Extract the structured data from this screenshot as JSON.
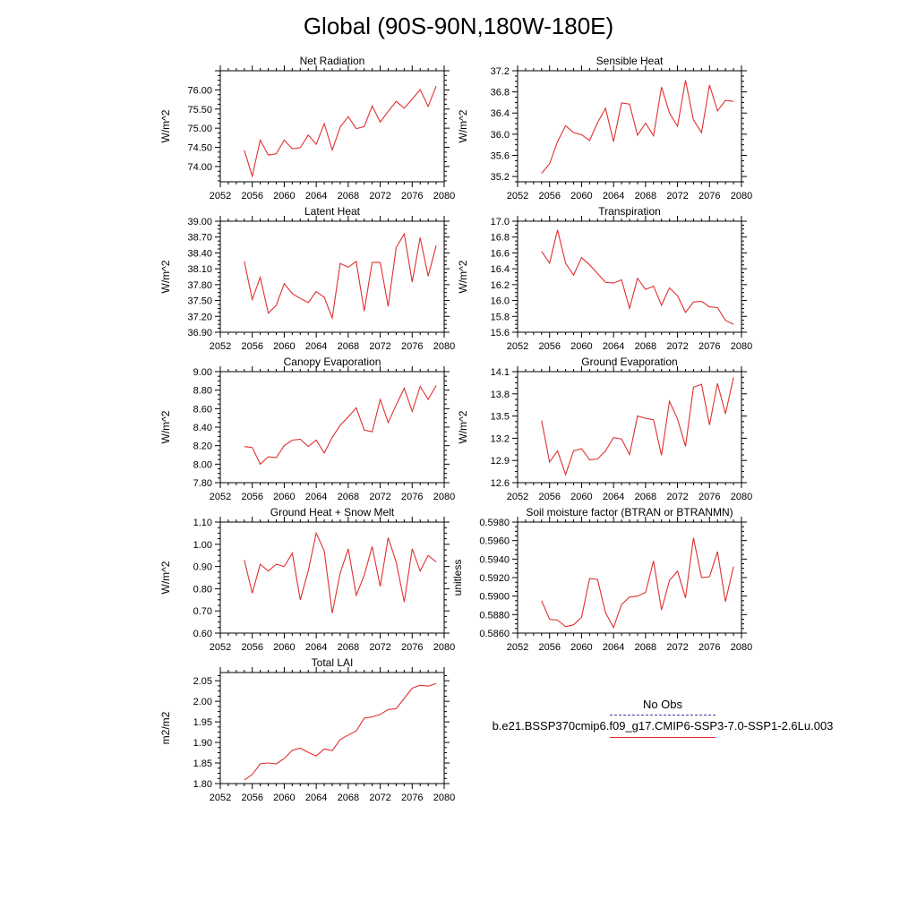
{
  "page_title": "Global (90S-90N,180W-180E)",
  "legend": {
    "title": "No Obs",
    "entries": [
      {
        "label": "",
        "style": "dashed",
        "color": "#3b3b9a"
      },
      {
        "label": "b.e21.BSSP370cmip6.f09_g17.CMIP6-SSP3-7.0-SSP1-2.6Lu.003",
        "style": "solid",
        "color": "#e03030"
      }
    ]
  },
  "chart_data": [
    {
      "type": "line",
      "title": "Net Radiation",
      "ylabel": "W/m^2",
      "xlim": [
        2052,
        2080
      ],
      "ylim": [
        73.6,
        76.5
      ],
      "xticks": [
        2052,
        2056,
        2060,
        2064,
        2068,
        2072,
        2076,
        2080
      ],
      "xtick_labels": [
        "2052",
        "2056",
        "2060",
        "2064",
        "2068",
        "2072",
        "2076",
        "2080"
      ],
      "yticks": [
        74.0,
        74.5,
        75.0,
        75.5,
        76.0
      ],
      "ytick_labels": [
        "74.00",
        "74.50",
        "75.00",
        "75.50",
        "76.00"
      ],
      "series": [
        {
          "color": "#e03030",
          "x": [
            2055,
            2056,
            2057,
            2058,
            2059,
            2060,
            2061,
            2062,
            2063,
            2064,
            2065,
            2066,
            2067,
            2068,
            2069,
            2070,
            2071,
            2072,
            2073,
            2074,
            2075,
            2076,
            2077,
            2078,
            2079
          ],
          "y": [
            74.42,
            73.75,
            74.69,
            74.3,
            74.33,
            74.69,
            74.46,
            74.49,
            74.82,
            74.58,
            75.12,
            74.43,
            75.03,
            75.3,
            74.99,
            75.04,
            75.58,
            75.16,
            75.44,
            75.7,
            75.52,
            75.76,
            76.01,
            75.57,
            76.1
          ]
        }
      ]
    },
    {
      "type": "line",
      "title": "Sensible Heat",
      "ylabel": "W/m^2",
      "xlim": [
        2052,
        2080
      ],
      "ylim": [
        35.1,
        37.2
      ],
      "xticks": [
        2052,
        2056,
        2060,
        2064,
        2068,
        2072,
        2076,
        2080
      ],
      "xtick_labels": [
        "2052",
        "2056",
        "2060",
        "2064",
        "2068",
        "2072",
        "2076",
        "2080"
      ],
      "yticks": [
        35.2,
        35.6,
        36.0,
        36.4,
        36.8,
        37.2
      ],
      "ytick_labels": [
        "35.2",
        "35.6",
        "36.0",
        "36.4",
        "36.8",
        "37.2"
      ],
      "series": [
        {
          "color": "#e03030",
          "x": [
            2055,
            2056,
            2057,
            2058,
            2059,
            2060,
            2061,
            2062,
            2063,
            2064,
            2065,
            2066,
            2067,
            2068,
            2069,
            2070,
            2071,
            2072,
            2073,
            2074,
            2075,
            2076,
            2077,
            2078,
            2079
          ],
          "y": [
            35.26,
            35.44,
            35.86,
            36.16,
            36.03,
            35.99,
            35.88,
            36.22,
            36.49,
            35.86,
            36.59,
            36.57,
            35.98,
            36.21,
            35.97,
            36.89,
            36.4,
            36.15,
            37.02,
            36.27,
            36.03,
            36.93,
            36.44,
            36.64,
            36.62
          ]
        }
      ]
    },
    {
      "type": "line",
      "title": "Latent Heat",
      "ylabel": "W/m^2",
      "xlim": [
        2052,
        2080
      ],
      "ylim": [
        36.9,
        39.0
      ],
      "xticks": [
        2052,
        2056,
        2060,
        2064,
        2068,
        2072,
        2076,
        2080
      ],
      "xtick_labels": [
        "2052",
        "2056",
        "2060",
        "2064",
        "2068",
        "2072",
        "2076",
        "2080"
      ],
      "yticks": [
        36.9,
        37.2,
        37.5,
        37.8,
        38.1,
        38.4,
        38.7,
        39.0
      ],
      "ytick_labels": [
        "36.90",
        "37.20",
        "37.50",
        "37.80",
        "38.10",
        "38.40",
        "38.70",
        "39.00"
      ],
      "series": [
        {
          "color": "#e03030",
          "x": [
            2055,
            2056,
            2057,
            2058,
            2059,
            2060,
            2061,
            2062,
            2063,
            2064,
            2065,
            2066,
            2067,
            2068,
            2069,
            2070,
            2071,
            2072,
            2073,
            2074,
            2075,
            2076,
            2077,
            2078,
            2079
          ],
          "y": [
            38.24,
            37.52,
            37.94,
            37.26,
            37.41,
            37.82,
            37.63,
            37.54,
            37.46,
            37.67,
            37.56,
            37.17,
            38.2,
            38.13,
            38.24,
            37.3,
            38.22,
            38.22,
            37.39,
            38.5,
            38.76,
            37.85,
            38.69,
            37.96,
            38.54
          ]
        }
      ]
    },
    {
      "type": "line",
      "title": "Transpiration",
      "ylabel": "W/m^2",
      "xlim": [
        2052,
        2080
      ],
      "ylim": [
        15.6,
        17.0
      ],
      "xticks": [
        2052,
        2056,
        2060,
        2064,
        2068,
        2072,
        2076,
        2080
      ],
      "xtick_labels": [
        "2052",
        "2056",
        "2060",
        "2064",
        "2068",
        "2072",
        "2076",
        "2080"
      ],
      "yticks": [
        15.6,
        15.8,
        16.0,
        16.2,
        16.4,
        16.6,
        16.8,
        17.0
      ],
      "ytick_labels": [
        "15.6",
        "15.8",
        "16.0",
        "16.2",
        "16.4",
        "16.6",
        "16.8",
        "17.0"
      ],
      "series": [
        {
          "color": "#e03030",
          "x": [
            2055,
            2056,
            2057,
            2058,
            2059,
            2060,
            2061,
            2062,
            2063,
            2064,
            2065,
            2066,
            2067,
            2068,
            2069,
            2070,
            2071,
            2072,
            2073,
            2074,
            2075,
            2076,
            2077,
            2078,
            2079
          ],
          "y": [
            16.62,
            16.47,
            16.89,
            16.47,
            16.32,
            16.54,
            16.45,
            16.34,
            16.23,
            16.22,
            16.26,
            15.9,
            16.28,
            16.14,
            16.18,
            15.94,
            16.16,
            16.06,
            15.85,
            15.98,
            15.99,
            15.92,
            15.91,
            15.75,
            15.7
          ]
        }
      ]
    },
    {
      "type": "line",
      "title": "Canopy Evaporation",
      "ylabel": "W/m^2",
      "xlim": [
        2052,
        2080
      ],
      "ylim": [
        7.8,
        9.0
      ],
      "xticks": [
        2052,
        2056,
        2060,
        2064,
        2068,
        2072,
        2076,
        2080
      ],
      "xtick_labels": [
        "2052",
        "2056",
        "2060",
        "2064",
        "2068",
        "2072",
        "2076",
        "2080"
      ],
      "yticks": [
        7.8,
        8.0,
        8.2,
        8.4,
        8.6,
        8.8,
        9.0
      ],
      "ytick_labels": [
        "7.80",
        "8.00",
        "8.20",
        "8.40",
        "8.60",
        "8.80",
        "9.00"
      ],
      "series": [
        {
          "color": "#e03030",
          "x": [
            2055,
            2056,
            2057,
            2058,
            2059,
            2060,
            2061,
            2062,
            2063,
            2064,
            2065,
            2066,
            2067,
            2068,
            2069,
            2070,
            2071,
            2072,
            2073,
            2074,
            2075,
            2076,
            2077,
            2078,
            2079
          ],
          "y": [
            8.19,
            8.18,
            8.0,
            8.08,
            8.07,
            8.2,
            8.26,
            8.27,
            8.19,
            8.26,
            8.12,
            8.29,
            8.42,
            8.51,
            8.61,
            8.37,
            8.35,
            8.7,
            8.45,
            8.64,
            8.82,
            8.57,
            8.84,
            8.7,
            8.85
          ]
        }
      ]
    },
    {
      "type": "line",
      "title": "Ground Evaporation",
      "ylabel": "W/m^2",
      "xlim": [
        2052,
        2080
      ],
      "ylim": [
        12.6,
        14.1
      ],
      "xticks": [
        2052,
        2056,
        2060,
        2064,
        2068,
        2072,
        2076,
        2080
      ],
      "xtick_labels": [
        "2052",
        "2056",
        "2060",
        "2064",
        "2068",
        "2072",
        "2076",
        "2080"
      ],
      "yticks": [
        12.6,
        12.9,
        13.2,
        13.5,
        13.8,
        14.1
      ],
      "ytick_labels": [
        "12.6",
        "12.9",
        "13.2",
        "13.5",
        "13.8",
        "14.1"
      ],
      "series": [
        {
          "color": "#e03030",
          "x": [
            2055,
            2056,
            2057,
            2058,
            2059,
            2060,
            2061,
            2062,
            2063,
            2064,
            2065,
            2066,
            2067,
            2068,
            2069,
            2070,
            2071,
            2072,
            2073,
            2074,
            2075,
            2076,
            2077,
            2078,
            2079
          ],
          "y": [
            13.44,
            12.88,
            13.03,
            12.71,
            13.03,
            13.06,
            12.91,
            12.92,
            13.03,
            13.21,
            13.19,
            12.98,
            13.5,
            13.47,
            13.45,
            12.97,
            13.7,
            13.46,
            13.09,
            13.89,
            13.93,
            13.38,
            13.94,
            13.53,
            14.02
          ]
        }
      ]
    },
    {
      "type": "line",
      "title": "Ground Heat + Snow Melt",
      "ylabel": "W/m^2",
      "xlim": [
        2052,
        2080
      ],
      "ylim": [
        0.6,
        1.1
      ],
      "xticks": [
        2052,
        2056,
        2060,
        2064,
        2068,
        2072,
        2076,
        2080
      ],
      "xtick_labels": [
        "2052",
        "2056",
        "2060",
        "2064",
        "2068",
        "2072",
        "2076",
        "2080"
      ],
      "yticks": [
        0.6,
        0.7,
        0.8,
        0.9,
        1.0,
        1.1
      ],
      "ytick_labels": [
        "0.60",
        "0.70",
        "0.80",
        "0.90",
        "1.00",
        "1.10"
      ],
      "series": [
        {
          "color": "#e03030",
          "x": [
            2055,
            2056,
            2057,
            2058,
            2059,
            2060,
            2061,
            2062,
            2063,
            2064,
            2065,
            2066,
            2067,
            2068,
            2069,
            2070,
            2071,
            2072,
            2073,
            2074,
            2075,
            2076,
            2077,
            2078,
            2079
          ],
          "y": [
            0.93,
            0.78,
            0.91,
            0.88,
            0.91,
            0.9,
            0.96,
            0.75,
            0.88,
            1.05,
            0.97,
            0.69,
            0.87,
            0.98,
            0.77,
            0.86,
            0.99,
            0.81,
            1.03,
            0.92,
            0.74,
            0.98,
            0.88,
            0.95,
            0.92
          ]
        }
      ]
    },
    {
      "type": "line",
      "title": "Soil moisture factor (BTRAN or BTRANMN)",
      "ylabel": "unitless",
      "xlim": [
        2052,
        2080
      ],
      "ylim": [
        0.586,
        0.598
      ],
      "xticks": [
        2052,
        2056,
        2060,
        2064,
        2068,
        2072,
        2076,
        2080
      ],
      "xtick_labels": [
        "2052",
        "2056",
        "2060",
        "2064",
        "2068",
        "2072",
        "2076",
        "2080"
      ],
      "yticks": [
        0.586,
        0.588,
        0.59,
        0.592,
        0.594,
        0.596,
        0.598
      ],
      "ytick_labels": [
        "0.5860",
        "0.5880",
        "0.5900",
        "0.5920",
        "0.5940",
        "0.5960",
        "0.5980"
      ],
      "series": [
        {
          "color": "#e03030",
          "x": [
            2055,
            2056,
            2057,
            2058,
            2059,
            2060,
            2061,
            2062,
            2063,
            2064,
            2065,
            2066,
            2067,
            2068,
            2069,
            2070,
            2071,
            2072,
            2073,
            2074,
            2075,
            2076,
            2077,
            2078,
            2079
          ],
          "y": [
            0.5895,
            0.5875,
            0.5874,
            0.5867,
            0.5869,
            0.5877,
            0.5919,
            0.5918,
            0.5882,
            0.5866,
            0.5891,
            0.5899,
            0.59,
            0.5904,
            0.5938,
            0.5885,
            0.5917,
            0.5927,
            0.5898,
            0.5963,
            0.592,
            0.5921,
            0.5948,
            0.5894,
            0.5932
          ]
        }
      ]
    },
    {
      "type": "line",
      "title": "Total LAI",
      "ylabel": "m2/m2",
      "xlim": [
        2052,
        2080
      ],
      "ylim": [
        1.8,
        2.07
      ],
      "xticks": [
        2052,
        2056,
        2060,
        2064,
        2068,
        2072,
        2076,
        2080
      ],
      "xtick_labels": [
        "2052",
        "2056",
        "2060",
        "2064",
        "2068",
        "2072",
        "2076",
        "2080"
      ],
      "yticks": [
        1.8,
        1.85,
        1.9,
        1.95,
        2.0,
        2.05
      ],
      "ytick_labels": [
        "1.80",
        "1.85",
        "1.90",
        "1.95",
        "2.00",
        "2.05"
      ],
      "series": [
        {
          "color": "#e03030",
          "x": [
            2055,
            2056,
            2057,
            2058,
            2059,
            2060,
            2061,
            2062,
            2063,
            2064,
            2065,
            2066,
            2067,
            2068,
            2069,
            2070,
            2071,
            2072,
            2073,
            2074,
            2075,
            2076,
            2077,
            2078,
            2079
          ],
          "y": [
            1.809,
            1.822,
            1.848,
            1.85,
            1.848,
            1.861,
            1.881,
            1.886,
            1.876,
            1.867,
            1.884,
            1.88,
            1.907,
            1.918,
            1.928,
            1.959,
            1.962,
            1.968,
            1.98,
            1.982,
            2.007,
            2.032,
            2.039,
            2.037,
            2.043
          ]
        }
      ]
    }
  ]
}
